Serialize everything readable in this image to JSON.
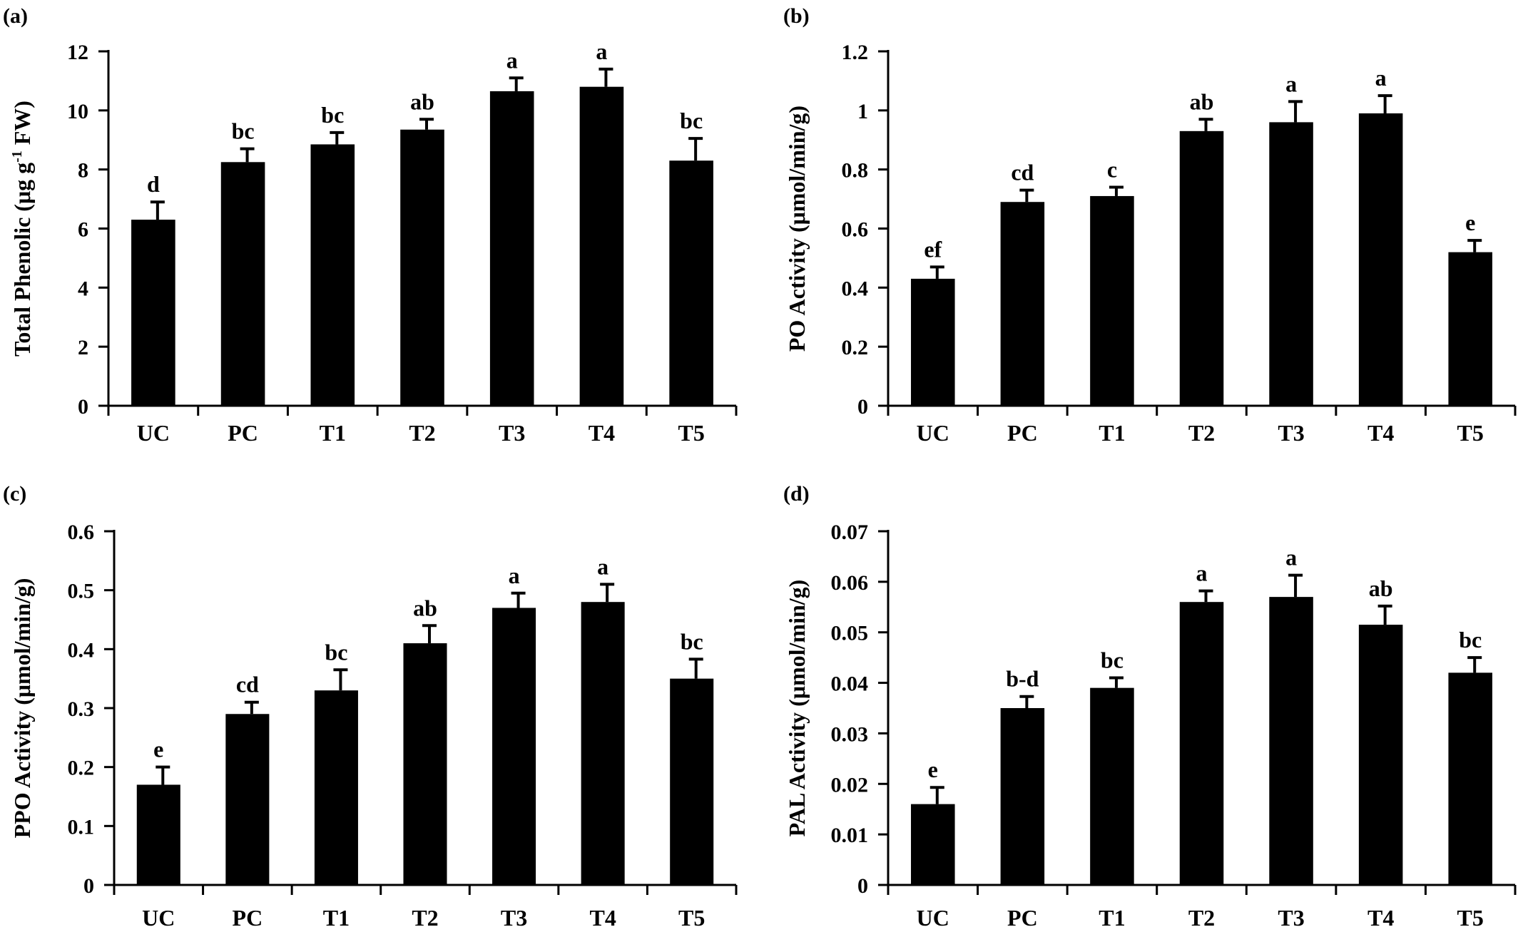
{
  "chart_data": [
    {
      "type": "bar",
      "panel_label": "(a)",
      "ylabel_main": "Total Phenolic (μg g",
      "ylabel_sup": "-1",
      "ylabel_tail": " FW)",
      "xlabel": "",
      "categories": [
        "UC",
        "PC",
        "T1",
        "T2",
        "T3",
        "T4",
        "T5"
      ],
      "values": [
        6.3,
        8.25,
        8.85,
        9.35,
        10.65,
        10.8,
        8.3
      ],
      "errors": [
        0.6,
        0.45,
        0.4,
        0.35,
        0.45,
        0.6,
        0.75
      ],
      "significance": [
        "d",
        "bc",
        "bc",
        "ab",
        "a",
        "a",
        "bc"
      ],
      "ylim": [
        0,
        12
      ],
      "yticks": [
        0,
        2,
        4,
        6,
        8,
        10,
        12
      ],
      "ytick_labels": [
        "0",
        "2",
        "4",
        "6",
        "8",
        "10",
        "12"
      ],
      "color": "#000000",
      "grid": false
    },
    {
      "type": "bar",
      "panel_label": "(b)",
      "ylabel_main": "PO Activity (μmol/min/g)",
      "ylabel_sup": "",
      "ylabel_tail": "",
      "xlabel": "",
      "categories": [
        "UC",
        "PC",
        "T1",
        "T2",
        "T3",
        "T4",
        "T5"
      ],
      "values": [
        0.43,
        0.69,
        0.71,
        0.93,
        0.96,
        0.99,
        0.52
      ],
      "errors": [
        0.04,
        0.04,
        0.03,
        0.04,
        0.07,
        0.06,
        0.04
      ],
      "significance": [
        "ef",
        "cd",
        "c",
        "ab",
        "a",
        "a",
        "e"
      ],
      "ylim": [
        0,
        1.2
      ],
      "yticks": [
        0,
        0.2,
        0.4,
        0.6,
        0.8,
        1.0,
        1.2
      ],
      "ytick_labels": [
        "0",
        "0.2",
        "0.4",
        "0.6",
        "0.8",
        "1",
        "1.2"
      ],
      "color": "#000000",
      "grid": false
    },
    {
      "type": "bar",
      "panel_label": "(c)",
      "ylabel_main": "PPO Activity (μmol/min/g)",
      "ylabel_sup": "",
      "ylabel_tail": "",
      "xlabel": "",
      "categories": [
        "UC",
        "PC",
        "T1",
        "T2",
        "T3",
        "T4",
        "T5"
      ],
      "values": [
        0.17,
        0.29,
        0.33,
        0.41,
        0.47,
        0.48,
        0.35
      ],
      "errors": [
        0.03,
        0.02,
        0.035,
        0.03,
        0.025,
        0.03,
        0.033
      ],
      "significance": [
        "e",
        "cd",
        "bc",
        "ab",
        "a",
        "a",
        "bc"
      ],
      "ylim": [
        0,
        0.6
      ],
      "yticks": [
        0,
        0.1,
        0.2,
        0.3,
        0.4,
        0.5,
        0.6
      ],
      "ytick_labels": [
        "0",
        "0.1",
        "0.2",
        "0.3",
        "0.4",
        "0.5",
        "0.6"
      ],
      "color": "#000000",
      "grid": false
    },
    {
      "type": "bar",
      "panel_label": "(d)",
      "ylabel_main": "PAL Activity (μmol/min/g)",
      "ylabel_sup": "",
      "ylabel_tail": "",
      "xlabel": "",
      "categories": [
        "UC",
        "PC",
        "T1",
        "T2",
        "T3",
        "T4",
        "T5"
      ],
      "values": [
        0.016,
        0.035,
        0.039,
        0.056,
        0.057,
        0.0515,
        0.042
      ],
      "errors": [
        0.0033,
        0.0023,
        0.002,
        0.0022,
        0.0043,
        0.0037,
        0.003
      ],
      "significance": [
        "e",
        "b-d",
        "bc",
        "a",
        "a",
        "ab",
        "bc"
      ],
      "ylim": [
        0,
        0.07
      ],
      "yticks": [
        0,
        0.01,
        0.02,
        0.03,
        0.04,
        0.05,
        0.06,
        0.07
      ],
      "ytick_labels": [
        "0",
        "0.01",
        "0.02",
        "0.03",
        "0.04",
        "0.05",
        "0.06",
        "0.07"
      ],
      "color": "#000000",
      "grid": false
    }
  ]
}
